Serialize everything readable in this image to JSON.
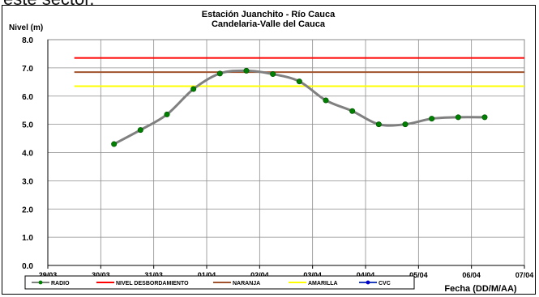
{
  "page_top_text": "este sector.",
  "chart_data": {
    "type": "line",
    "title": "Estación Juanchito - Río Cauca",
    "subtitle": "Candelaria-Valle del Cauca",
    "ylabel": "Nivel (m)",
    "xlabel": "Fecha (DD/M/AA)",
    "ylim": [
      0,
      8
    ],
    "yticks": [
      "0.0",
      "1.0",
      "2.0",
      "3.0",
      "4.0",
      "5.0",
      "6.0",
      "7.0",
      "8.0"
    ],
    "xlim": [
      0,
      9
    ],
    "xticks": [
      "29/03",
      "30/03",
      "31/03",
      "01/04",
      "02/04",
      "03/04",
      "04/04",
      "05/04",
      "06/04",
      "07/04"
    ],
    "grid": true,
    "legend_position": "bottom",
    "series": [
      {
        "name": "RADIO",
        "color": "#808080",
        "marker_color": "#008000",
        "x": [
          1.25,
          1.75,
          2.25,
          2.75,
          3.25,
          3.75,
          4.25,
          4.75,
          5.25,
          5.75,
          6.25,
          6.75,
          7.25,
          7.75,
          8.25
        ],
        "values": [
          4.3,
          4.8,
          5.35,
          6.25,
          6.8,
          6.9,
          6.78,
          6.52,
          5.85,
          5.47,
          5.0,
          5.0,
          5.2,
          5.25,
          5.25
        ]
      },
      {
        "name": "NIVEL DESBORDAMIENTO",
        "color": "#ff0000",
        "x": [
          0.5,
          9.0
        ],
        "values": [
          7.35,
          7.35
        ]
      },
      {
        "name": "NARANJA",
        "color": "#a0522d",
        "x": [
          0.5,
          9.0
        ],
        "values": [
          6.85,
          6.85
        ]
      },
      {
        "name": "AMARILLA",
        "color": "#ffff00",
        "x": [
          0.5,
          9.0
        ],
        "values": [
          6.35,
          6.35
        ]
      },
      {
        "name": "CVC",
        "color": "#1f3fbf",
        "x": [],
        "values": []
      }
    ]
  }
}
